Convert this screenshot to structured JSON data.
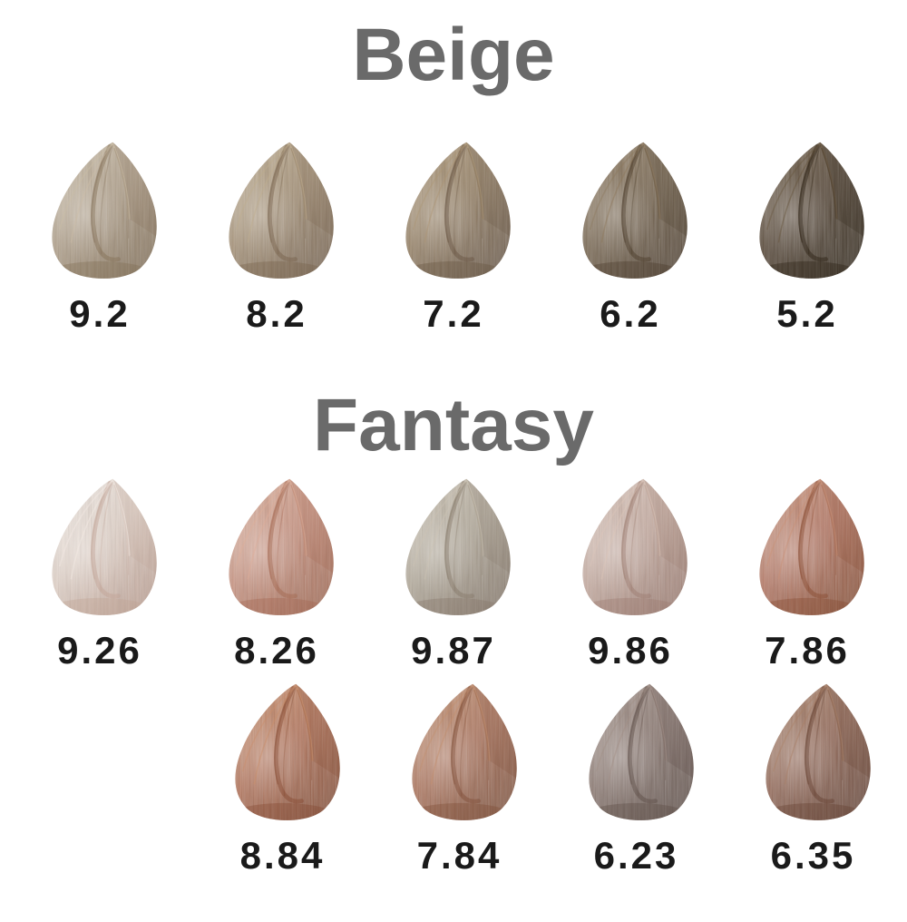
{
  "background": "#ffffff",
  "title_color": "#6a6a6a",
  "label_color": "#1a1a1a",
  "sections": [
    {
      "title": "Beige",
      "rows": [
        [
          {
            "code": "9.2",
            "base": "#ad9b83",
            "light": "#cbbda6",
            "dark": "#826e55"
          },
          {
            "code": "8.2",
            "base": "#a08a6d",
            "light": "#bfac8d",
            "dark": "#75604a"
          },
          {
            "code": "7.2",
            "base": "#8f785a",
            "light": "#ac9574",
            "dark": "#665340"
          },
          {
            "code": "6.2",
            "base": "#6f5c44",
            "light": "#8d785c",
            "dark": "#4a3a29"
          },
          {
            "code": "5.2",
            "base": "#4a3928",
            "light": "#67543c",
            "dark": "#2b2012"
          }
        ]
      ]
    },
    {
      "title": "Fantasy",
      "rows": [
        [
          {
            "code": "9.26",
            "base": "#e4d3c8",
            "light": "#f4ece5",
            "dark": "#c0a294"
          },
          {
            "code": "8.26",
            "base": "#c88d79",
            "light": "#deae98",
            "dark": "#a2654e"
          },
          {
            "code": "9.87",
            "base": "#b0a695",
            "light": "#ccc3b3",
            "dark": "#857768"
          },
          {
            "code": "9.86",
            "base": "#c5a89c",
            "light": "#dcc5b9",
            "dark": "#9c7a6e"
          },
          {
            "code": "7.86",
            "base": "#b26e59",
            "light": "#ca9076",
            "dark": "#87492f"
          }
        ],
        [
          {
            "code": "8.84",
            "base": "#b06a4e",
            "light": "#ca8d68",
            "dark": "#84482f"
          },
          {
            "code": "7.84",
            "base": "#aa6c52",
            "light": "#c38e6c",
            "dark": "#7e4c35"
          },
          {
            "code": "6.23",
            "base": "#847068",
            "light": "#a18e85",
            "dark": "#5c4b44"
          },
          {
            "code": "6.35",
            "base": "#8d5e4b",
            "light": "#a97f65",
            "dark": "#633e2f"
          }
        ]
      ]
    }
  ]
}
